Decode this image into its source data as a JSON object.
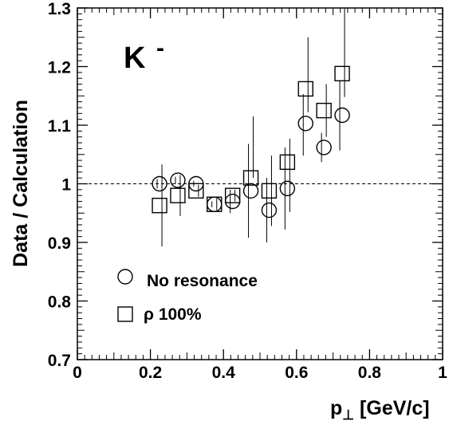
{
  "chart_data": {
    "type": "scatter",
    "annotation": "K",
    "annotation_superscript": "-",
    "ylabel": "Data / Calculation",
    "xlabel_main": "p",
    "xlabel_subscript": "⊥",
    "xlabel_unit": "[GeV/c]",
    "xlim": [
      0,
      1
    ],
    "ylim": [
      0.7,
      1.3
    ],
    "x_ticks": [
      "0",
      "0.2",
      "0.4",
      "0.6",
      "0.8",
      "1"
    ],
    "y_ticks": [
      "0.7",
      "0.8",
      "0.9",
      "1",
      "1.1",
      "1.2",
      "1.3"
    ],
    "reference_line_y": 1.0,
    "legend_placement": "bottom-left",
    "series": [
      {
        "name": "No resonance",
        "marker": "circle",
        "points": [
          {
            "x": 0.225,
            "y": 1.0,
            "err_lo": 0.008,
            "err_hi": 0.008
          },
          {
            "x": 0.275,
            "y": 1.006,
            "err_lo": 0.006,
            "err_hi": 0.006
          },
          {
            "x": 0.325,
            "y": 1.0,
            "err_lo": 0.005,
            "err_hi": 0.005
          },
          {
            "x": 0.375,
            "y": 0.965,
            "err_lo": 0.005,
            "err_hi": 0.005
          },
          {
            "x": 0.425,
            "y": 0.97,
            "err_lo": 0.02,
            "err_hi": 0.02
          },
          {
            "x": 0.475,
            "y": 0.988,
            "err_lo": 0.08,
            "err_hi": 0.08
          },
          {
            "x": 0.525,
            "y": 0.955,
            "err_lo": 0.055,
            "err_hi": 0.055
          },
          {
            "x": 0.575,
            "y": 0.992,
            "err_lo": 0.07,
            "err_hi": 0.07
          },
          {
            "x": 0.625,
            "y": 1.103,
            "err_lo": 0.055,
            "err_hi": 0.05
          },
          {
            "x": 0.675,
            "y": 1.062,
            "err_lo": 0.025,
            "err_hi": 0.025
          },
          {
            "x": 0.725,
            "y": 1.117,
            "err_lo": 0.06,
            "err_hi": 0.06
          }
        ]
      },
      {
        "name": "ρ 100%",
        "marker": "square",
        "points": [
          {
            "x": 0.225,
            "y": 0.963,
            "err_lo": 0.07,
            "err_hi": 0.07
          },
          {
            "x": 0.275,
            "y": 0.98,
            "err_lo": 0.035,
            "err_hi": 0.035
          },
          {
            "x": 0.325,
            "y": 0.988,
            "err_lo": 0.01,
            "err_hi": 0.01
          },
          {
            "x": 0.375,
            "y": 0.965,
            "err_lo": 0.01,
            "err_hi": 0.01
          },
          {
            "x": 0.425,
            "y": 0.98,
            "err_lo": 0.01,
            "err_hi": 0.01
          },
          {
            "x": 0.475,
            "y": 1.01,
            "err_lo": 0.0,
            "err_hi": 0.105
          },
          {
            "x": 0.525,
            "y": 0.988,
            "err_lo": 0.06,
            "err_hi": 0.06
          },
          {
            "x": 0.575,
            "y": 1.037,
            "err_lo": 0.085,
            "err_hi": 0.04
          },
          {
            "x": 0.625,
            "y": 1.162,
            "err_lo": 0.04,
            "err_hi": 0.088
          },
          {
            "x": 0.675,
            "y": 1.125,
            "err_lo": 0.045,
            "err_hi": 0.045
          },
          {
            "x": 0.725,
            "y": 1.188,
            "err_lo": 0.04,
            "err_hi": 0.112
          }
        ]
      }
    ]
  }
}
